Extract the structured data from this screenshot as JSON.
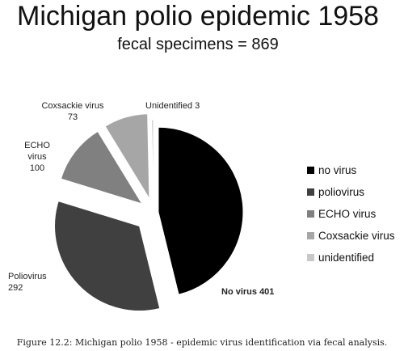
{
  "chart_data": {
    "type": "pie",
    "title": "Michigan polio epidemic 1958",
    "subtitle": "fecal specimens  = 869",
    "categories": [
      "no virus",
      "poliovirus",
      "ECHO virus",
      "Coxsackie virus",
      "unidentified"
    ],
    "values": [
      401,
      292,
      100,
      73,
      3
    ],
    "colors": [
      "#000000",
      "#404040",
      "#808080",
      "#a6a6a6",
      "#c8c8c8"
    ],
    "slice_labels": [
      {
        "lines": [
          "No virus 401"
        ],
        "bold": true
      },
      {
        "lines": [
          "Poliovirus",
          "292"
        ],
        "bold": false
      },
      {
        "lines": [
          "ECHO",
          "virus",
          "100"
        ],
        "bold": false
      },
      {
        "lines": [
          "Coxsackie virus",
          "73"
        ],
        "bold": false
      },
      {
        "lines": [
          "Unidentified 3"
        ],
        "bold": false
      }
    ],
    "legend": [
      "no virus",
      "poliovirus",
      "ECHO virus",
      " Coxsackie virus",
      "unidentified"
    ],
    "legend_position": "right",
    "slices_exploded": true
  },
  "caption": "Figure 12.2: Michigan polio 1958 - epidemic virus identification via fecal analysis."
}
